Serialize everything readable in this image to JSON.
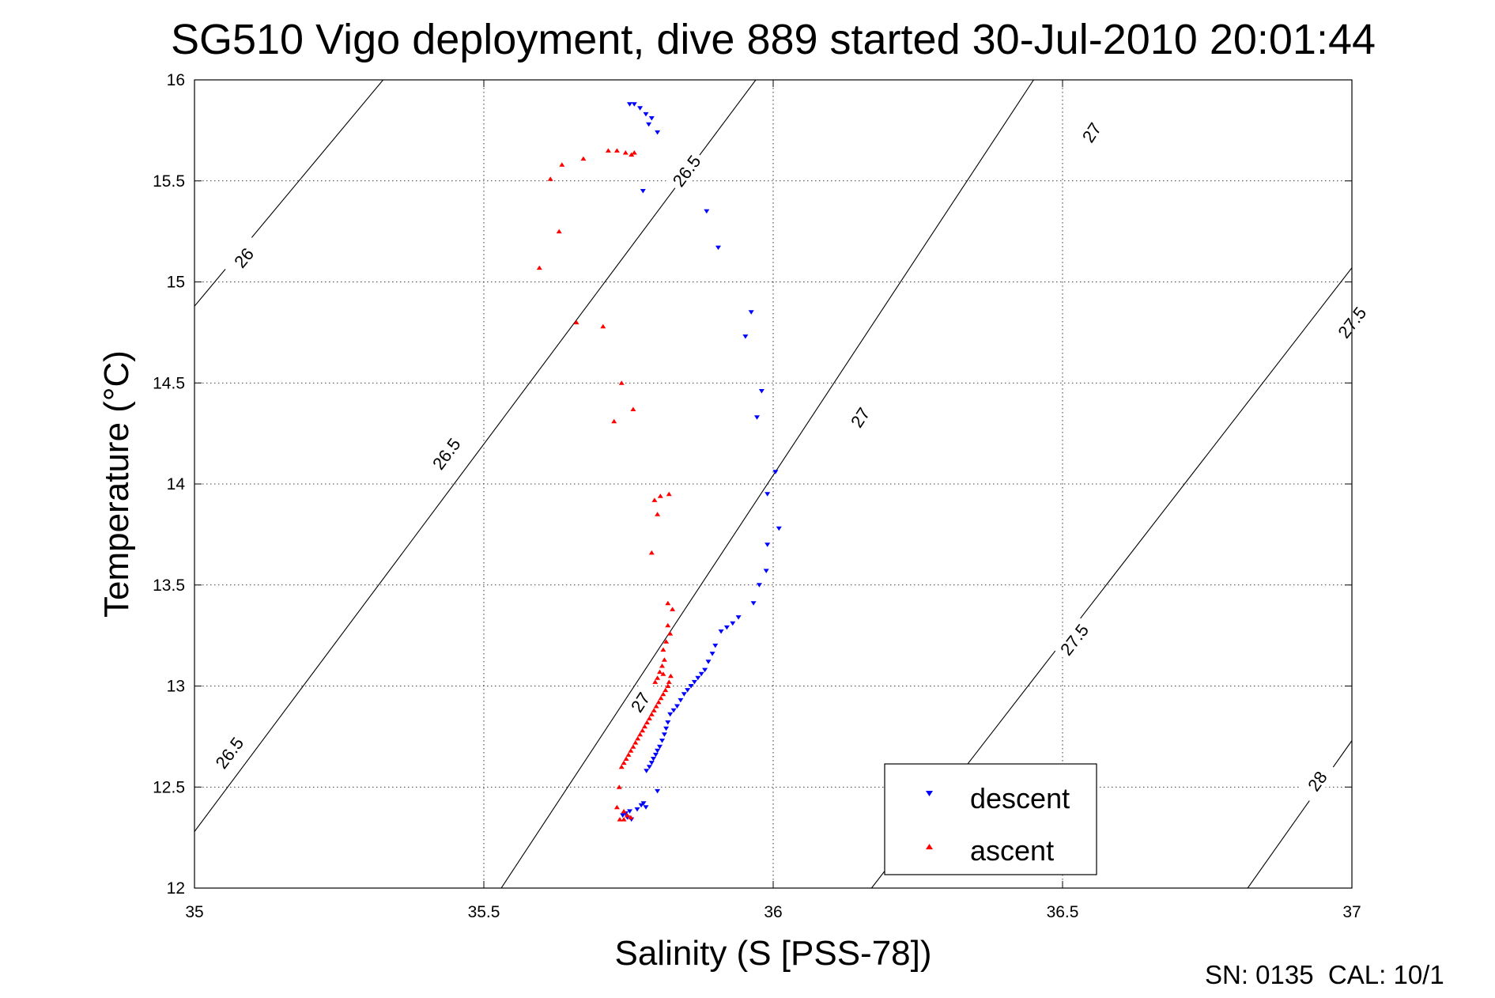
{
  "chart_data": {
    "type": "scatter",
    "title": "SG510 Vigo deployment, dive 889 started 30-Jul-2010 20:01:44",
    "xlabel": "Salinity (S [PSS-78])",
    "ylabel": "Temperature (°C)",
    "xlim": [
      35,
      37
    ],
    "ylim": [
      12,
      16
    ],
    "x_ticks": [
      "35",
      "35.5",
      "36",
      "36.5",
      "37"
    ],
    "y_ticks": [
      "12",
      "12.5",
      "13",
      "13.5",
      "14",
      "14.5",
      "15",
      "15.5",
      "16"
    ],
    "grid": true,
    "legend_position": "bottom-right",
    "footer": "SN: 0135  CAL: 10/1",
    "density_contours": [
      {
        "label": "26",
        "points": [
          [
            35.0,
            14.88
          ],
          [
            35.326,
            16.0
          ]
        ]
      },
      {
        "label": "26.5",
        "points": [
          [
            35.0,
            12.28
          ],
          [
            35.97,
            16.0
          ]
        ]
      },
      {
        "label": "27",
        "points": [
          [
            35.53,
            12.0
          ],
          [
            36.45,
            16.0
          ]
        ]
      },
      {
        "label": "27.5",
        "points": [
          [
            36.17,
            12.0
          ],
          [
            37.0,
            15.07
          ]
        ]
      },
      {
        "label": "28",
        "points": [
          [
            36.82,
            12.0
          ],
          [
            37.0,
            12.73
          ]
        ]
      }
    ],
    "contour_labels": [
      {
        "text": "26",
        "x": 35.085,
        "y": 15.12
      },
      {
        "text": "26.5",
        "x": 35.435,
        "y": 14.15
      },
      {
        "text": "26.5",
        "x": 35.06,
        "y": 12.67
      },
      {
        "text": "26.5",
        "x": 35.85,
        "y": 15.55
      },
      {
        "text": "27",
        "x": 36.55,
        "y": 15.74
      },
      {
        "text": "27",
        "x": 36.15,
        "y": 14.33
      },
      {
        "text": "27",
        "x": 35.77,
        "y": 12.92
      },
      {
        "text": "27.5",
        "x": 37.0,
        "y": 14.8
      },
      {
        "text": "27.5",
        "x": 36.52,
        "y": 13.23
      },
      {
        "text": "28",
        "x": 36.94,
        "y": 12.53
      }
    ],
    "series": [
      {
        "name": "descent",
        "color": "#0000ff",
        "marker": "triangle-down",
        "x": [
          35.752,
          35.76,
          35.77,
          35.78,
          35.79,
          35.785,
          35.8,
          35.775,
          35.885,
          35.905,
          35.962,
          35.952,
          35.98,
          35.972,
          36.004,
          35.99,
          36.01,
          35.99,
          35.988,
          35.976,
          35.966,
          35.94,
          35.93,
          35.92,
          35.91,
          35.9,
          35.895,
          35.888,
          35.882,
          35.876,
          35.87,
          35.864,
          35.858,
          35.852,
          35.846,
          35.84,
          35.834,
          35.828,
          35.822,
          35.818,
          35.815,
          35.812,
          35.808,
          35.804,
          35.8,
          35.797,
          35.793,
          35.79,
          35.786,
          35.781,
          35.776,
          35.772,
          35.8,
          35.78,
          35.765,
          35.752,
          35.745,
          35.74,
          35.748,
          35.755
        ],
        "y": [
          15.88,
          15.88,
          15.86,
          15.83,
          15.81,
          15.78,
          15.74,
          15.45,
          15.35,
          15.17,
          14.85,
          14.73,
          14.46,
          14.33,
          14.06,
          13.95,
          13.78,
          13.7,
          13.57,
          13.5,
          13.41,
          13.34,
          13.31,
          13.29,
          13.27,
          13.2,
          13.16,
          13.12,
          13.08,
          13.06,
          13.04,
          13.02,
          13.0,
          12.98,
          12.96,
          12.93,
          12.9,
          12.88,
          12.86,
          12.82,
          12.79,
          12.76,
          12.73,
          12.7,
          12.68,
          12.66,
          12.64,
          12.62,
          12.6,
          12.58,
          12.42,
          12.41,
          12.48,
          12.4,
          12.39,
          12.38,
          12.37,
          12.36,
          12.35,
          12.34
        ]
      },
      {
        "name": "ascent",
        "color": "#ff0000",
        "marker": "triangle-up",
        "x": [
          35.73,
          35.715,
          35.755,
          35.76,
          35.745,
          35.672,
          35.635,
          35.615,
          35.63,
          35.596,
          35.66,
          35.706,
          35.738,
          35.725,
          35.758,
          35.805,
          35.82,
          35.795,
          35.8,
          35.79,
          35.818,
          35.826,
          35.818,
          35.822,
          35.815,
          35.81,
          35.812,
          35.808,
          35.804,
          35.8,
          35.796,
          35.81,
          35.823,
          35.82,
          35.818,
          35.814,
          35.81,
          35.806,
          35.802,
          35.798,
          35.794,
          35.79,
          35.786,
          35.782,
          35.778,
          35.774,
          35.77,
          35.766,
          35.762,
          35.758,
          35.754,
          35.75,
          35.746,
          35.742,
          35.738,
          35.734,
          35.73,
          35.742,
          35.748,
          35.754,
          35.742,
          35.735
        ],
        "y": [
          15.65,
          15.65,
          15.63,
          15.64,
          15.64,
          15.61,
          15.58,
          15.51,
          15.25,
          15.07,
          14.8,
          14.78,
          14.5,
          14.31,
          14.37,
          13.94,
          13.95,
          13.92,
          13.85,
          13.66,
          13.41,
          13.38,
          13.3,
          13.26,
          13.22,
          13.18,
          13.13,
          13.1,
          13.07,
          13.04,
          13.02,
          13.06,
          13.05,
          13.02,
          13.0,
          12.98,
          12.96,
          12.94,
          12.92,
          12.9,
          12.88,
          12.86,
          12.84,
          12.82,
          12.8,
          12.78,
          12.76,
          12.74,
          12.72,
          12.7,
          12.68,
          12.66,
          12.64,
          12.62,
          12.6,
          12.5,
          12.4,
          12.38,
          12.36,
          12.35,
          12.34,
          12.34
        ]
      }
    ]
  }
}
